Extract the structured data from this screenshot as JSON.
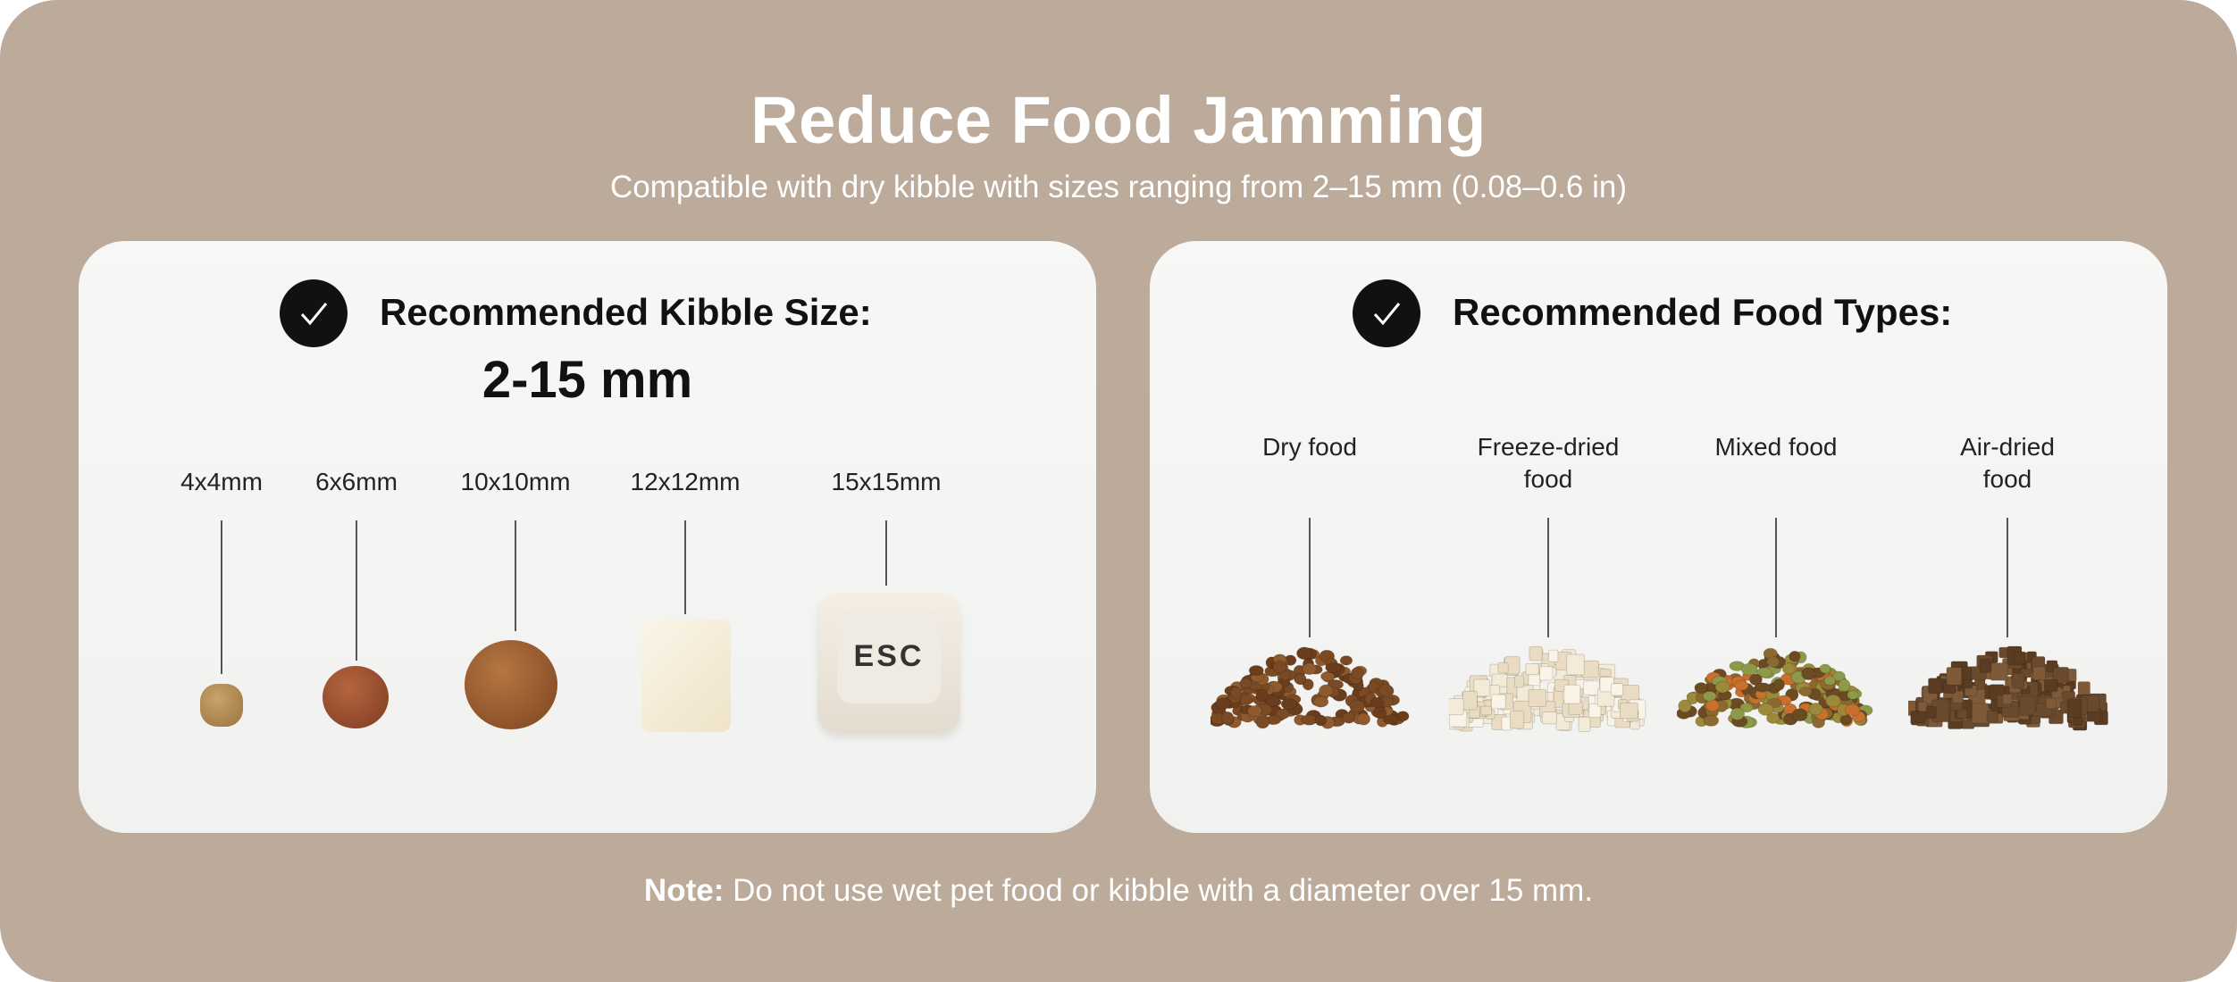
{
  "header": {
    "title": "Reduce Food Jamming",
    "subtitle": "Compatible with dry kibble with sizes ranging from 2–15 mm (0.08–0.6 in)"
  },
  "kibble_card": {
    "heading": "Recommended Kibble Size:",
    "range": "2-15 mm",
    "sizes": [
      {
        "label": "4x4mm"
      },
      {
        "label": "6x6mm"
      },
      {
        "label": "10x10mm"
      },
      {
        "label": "12x12mm"
      },
      {
        "label": "15x15mm",
        "key_text": "ESC"
      }
    ]
  },
  "food_card": {
    "heading": "Recommended Food Types:",
    "types": [
      {
        "line1": "",
        "line2": "Dry food"
      },
      {
        "line1": "Freeze-dried",
        "line2": "food"
      },
      {
        "line1": "",
        "line2": "Mixed food"
      },
      {
        "line1": "Air-dried",
        "line2": "food"
      }
    ]
  },
  "note": {
    "label": "Note:",
    "text": " Do not use wet pet food or kibble with a diameter over 15 mm."
  },
  "colors": {
    "background": "#bcab9b",
    "card": "#f4f4f2",
    "check": "#111111"
  }
}
